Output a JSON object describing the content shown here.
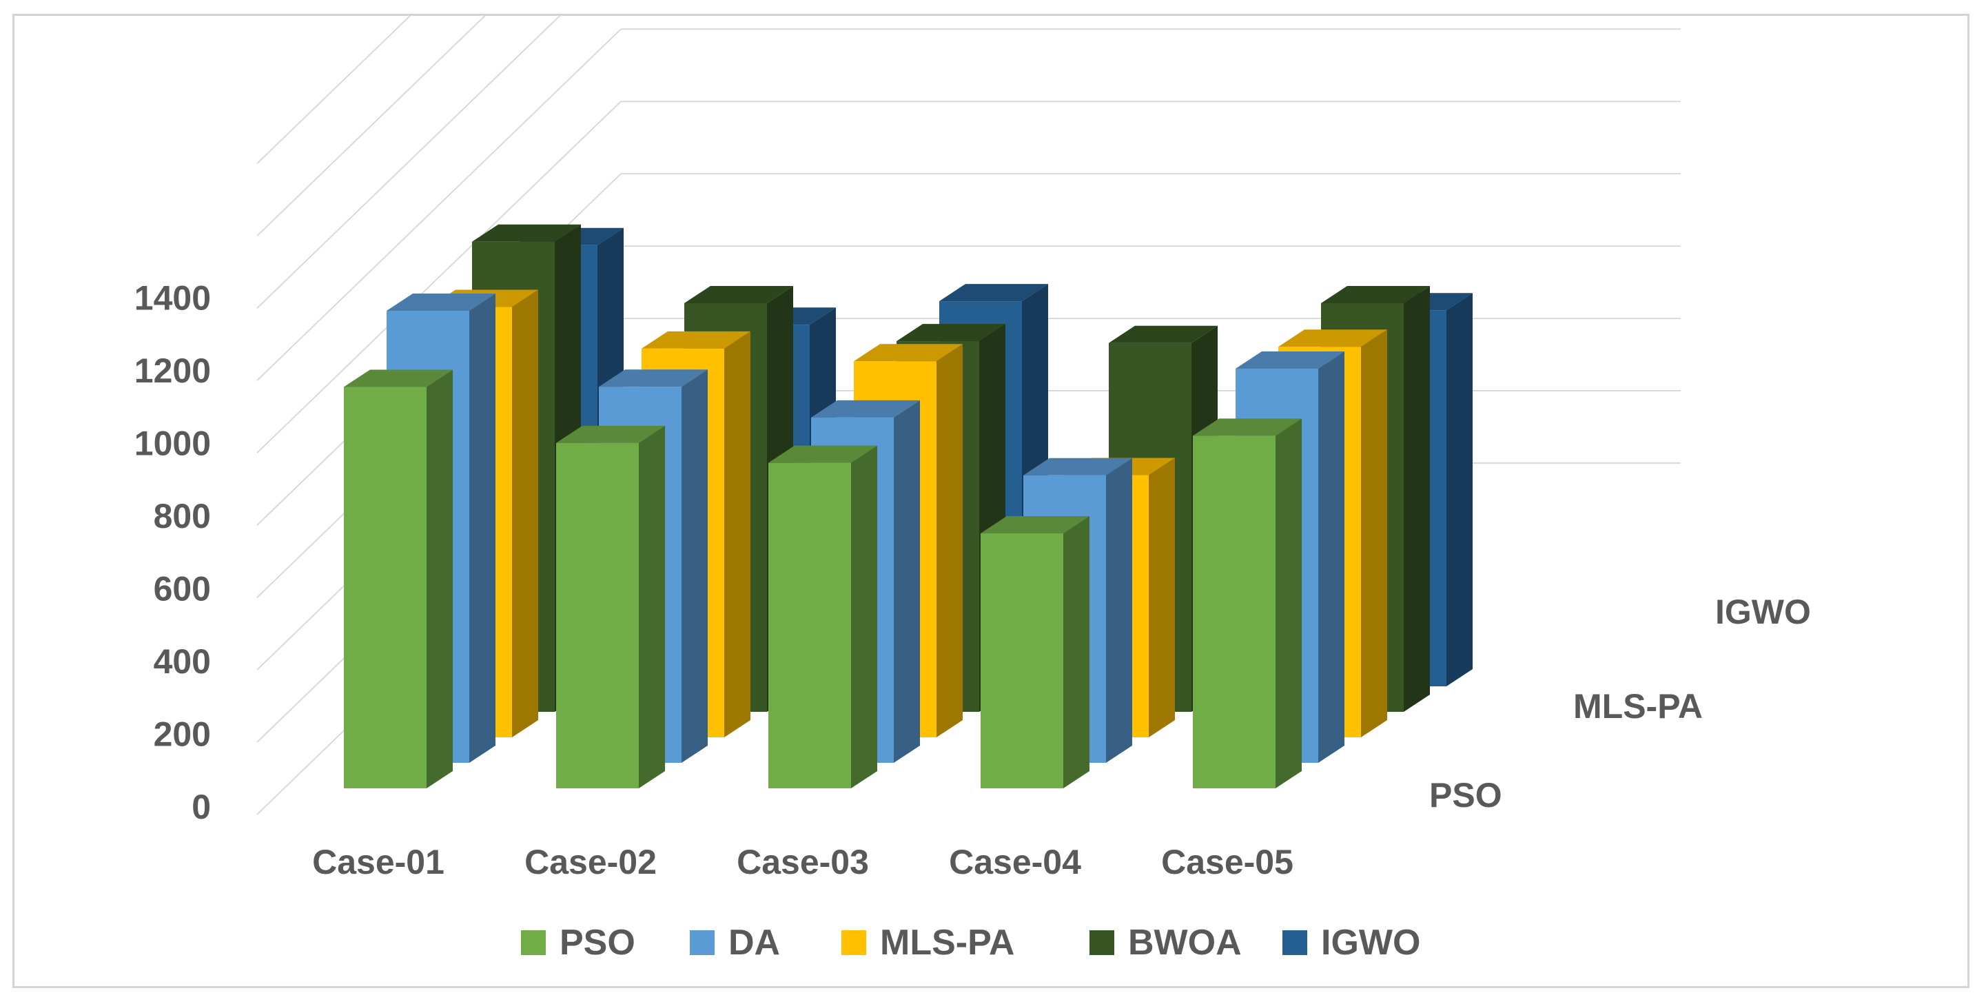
{
  "chart_data": {
    "type": "bar",
    "subtype": "3d-clustered-column",
    "title": "",
    "xlabel": "",
    "ylabel": "",
    "categories": [
      "Case-01",
      "Case-02",
      "Case-03",
      "Case-04",
      "Case-05"
    ],
    "series": [
      {
        "name": "PSO",
        "color": "#70ad47",
        "values": [
          1110,
          955,
          900,
          705,
          975
        ]
      },
      {
        "name": "DA",
        "color": "#5b9bd5",
        "values": [
          1250,
          1040,
          955,
          795,
          1090
        ]
      },
      {
        "name": "MLS-PA",
        "color": "#ffc000",
        "values": [
          1190,
          1075,
          1040,
          725,
          1080
        ]
      },
      {
        "name": "BWOA",
        "color": "#375623",
        "values": [
          1300,
          1130,
          1025,
          1020,
          1130
        ]
      },
      {
        "name": "IGWO",
        "color": "#255e91",
        "values": [
          1220,
          1000,
          1065,
          0,
          1040
        ]
      }
    ],
    "depth_axis_labels": [
      "PSO",
      "MLS-PA",
      "IGWO"
    ],
    "y_ticks": [
      "0",
      "200",
      "400",
      "600",
      "800",
      "1000",
      "1200",
      "1400"
    ],
    "ylim": [
      0,
      1400
    ],
    "grid": true,
    "legend_position": "bottom"
  }
}
